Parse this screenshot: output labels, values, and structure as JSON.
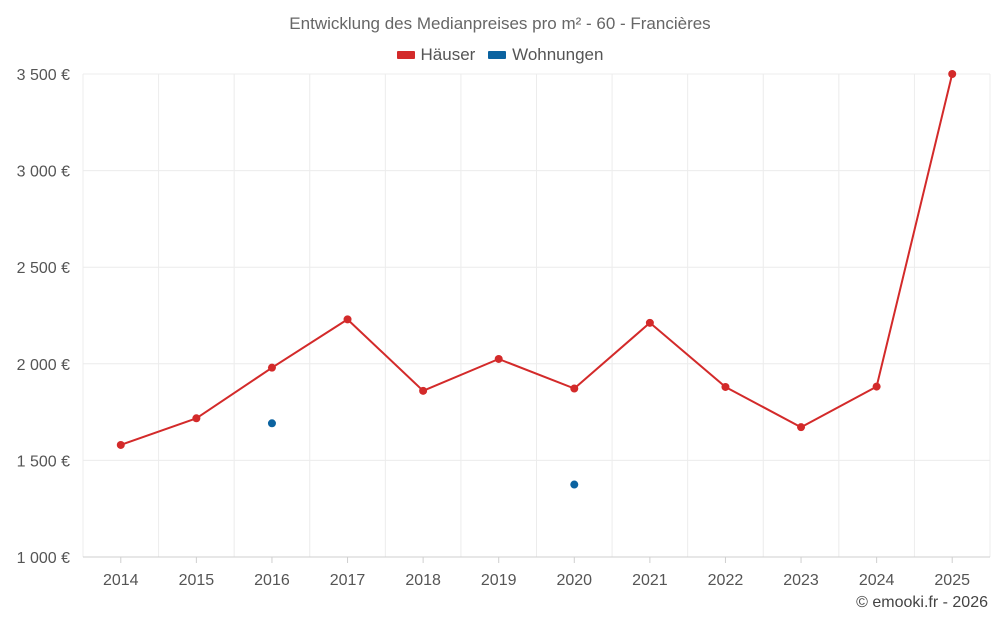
{
  "chart_data": {
    "type": "line",
    "title": "Entwicklung des Medianpreises pro m² - 60 - Francières",
    "categories": [
      "2014",
      "2015",
      "2016",
      "2017",
      "2018",
      "2019",
      "2020",
      "2021",
      "2022",
      "2023",
      "2024",
      "2025"
    ],
    "series": [
      {
        "name": "Häuser",
        "color": "#d32a2a",
        "values": [
          1580,
          1718,
          1980,
          2230,
          1860,
          2025,
          1872,
          2212,
          1880,
          1672,
          1882,
          3500
        ]
      },
      {
        "name": "Wohnungen",
        "color": "#0b63a0",
        "values": [
          null,
          null,
          1692,
          null,
          null,
          null,
          1375,
          null,
          null,
          null,
          null,
          null
        ]
      }
    ],
    "ylim": [
      1000,
      3500
    ],
    "yticks": [
      1000,
      1500,
      2000,
      2500,
      3000,
      3500
    ],
    "ytick_labels": [
      "1 000 €",
      "1 500 €",
      "2 000 €",
      "2 500 €",
      "3 000 €",
      "3 500 €"
    ],
    "xlabel": "",
    "ylabel": "",
    "grid": true,
    "legend_position": "top-center"
  },
  "credit": "© emooki.fr - 2026"
}
